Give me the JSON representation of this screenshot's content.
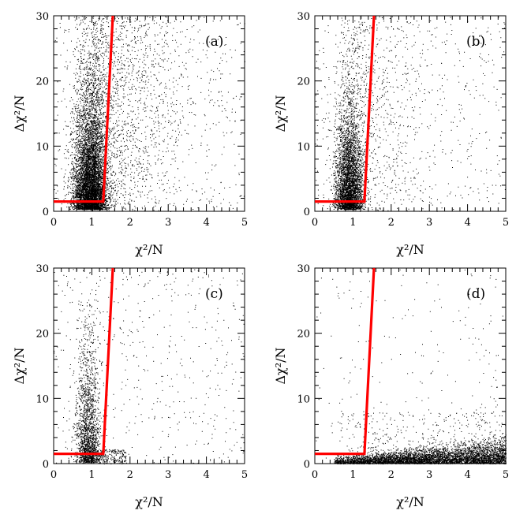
{
  "colors": {
    "points": "#000000",
    "cut_line": "#ff0000",
    "frame": "#000000"
  },
  "chart_data": [
    {
      "type": "scatter",
      "panel_label": "(a)",
      "xlabel": "χ²/N",
      "ylabel": "Δχ²/N",
      "xlim": [
        0,
        5
      ],
      "ylim": [
        0,
        30
      ],
      "x_ticks": [
        "0",
        "1",
        "2",
        "3",
        "4",
        "5"
      ],
      "y_ticks": [
        "0",
        "10",
        "20",
        "30"
      ],
      "point_density": "dense",
      "distribution": "column at x≈0.6–1.3 spanning full height, densest below y≈10, sparse scatter out to x=5",
      "cut_line": [
        [
          0,
          1.5
        ],
        [
          1.3,
          1.5
        ],
        [
          1.55,
          30
        ]
      ]
    },
    {
      "type": "scatter",
      "panel_label": "(b)",
      "xlabel": "χ²/N",
      "ylabel": "Δχ²/N",
      "xlim": [
        0,
        5
      ],
      "ylim": [
        0,
        30
      ],
      "x_ticks": [
        "0",
        "1",
        "2",
        "3",
        "4",
        "5"
      ],
      "y_ticks": [
        "0",
        "10",
        "20",
        "30"
      ],
      "point_density": "medium",
      "distribution": "column at x≈0.6–1.2 spanning full height, sparse scatter out to x=5",
      "cut_line": [
        [
          0,
          1.5
        ],
        [
          1.3,
          1.5
        ],
        [
          1.55,
          30
        ]
      ]
    },
    {
      "type": "scatter",
      "panel_label": "(c)",
      "xlabel": "χ²/N",
      "ylabel": "Δχ²/N",
      "xlim": [
        0,
        5
      ],
      "ylim": [
        0,
        30
      ],
      "x_ticks": [
        "0",
        "1",
        "2",
        "3",
        "4",
        "5"
      ],
      "y_ticks": [
        "0",
        "10",
        "20",
        "30"
      ],
      "point_density": "sparse",
      "distribution": "thin column at x≈0.6–1.2, few points elsewhere, clump near y=0–2",
      "cut_line": [
        [
          0,
          1.5
        ],
        [
          1.3,
          1.5
        ],
        [
          1.55,
          30
        ]
      ]
    },
    {
      "type": "scatter",
      "panel_label": "(d)",
      "xlabel": "χ²/N",
      "ylabel": "Δχ²/N",
      "xlim": [
        0,
        5
      ],
      "ylim": [
        0,
        30
      ],
      "x_ticks": [
        "0",
        "1",
        "2",
        "3",
        "4",
        "5"
      ],
      "y_ticks": [
        "0",
        "10",
        "20",
        "30"
      ],
      "point_density": "dense-band",
      "distribution": "dense horizontal band at y≈0–2 spanning x≈0.5–5, rising slightly toward x=5, very few points above",
      "cut_line": [
        [
          0,
          1.5
        ],
        [
          1.3,
          1.5
        ],
        [
          1.55,
          30
        ]
      ]
    }
  ]
}
